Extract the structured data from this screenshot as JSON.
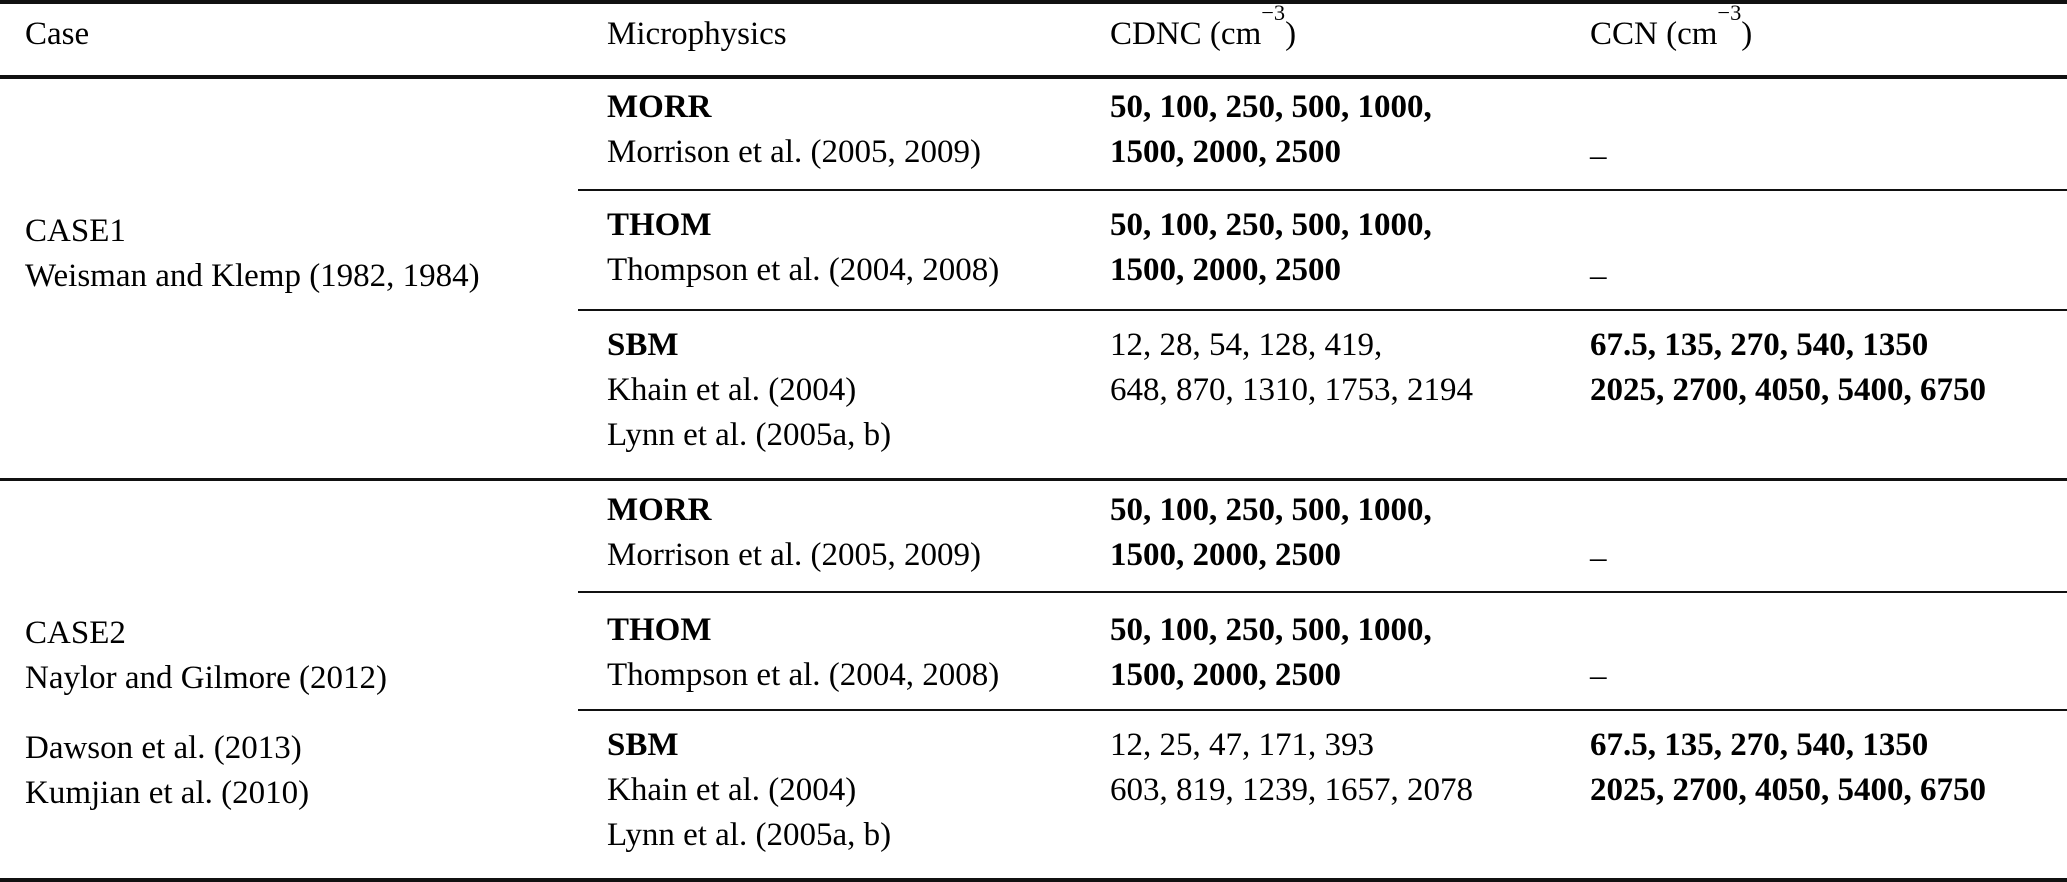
{
  "header": {
    "case": "Case",
    "microphysics": "Microphysics",
    "cdnc_prefix": "CDNC (cm",
    "cdnc_exponent": "−3",
    "cdnc_suffix": ")",
    "ccn_prefix": "CCN (cm",
    "ccn_exponent": "−3",
    "ccn_suffix": ")"
  },
  "sections": [
    {
      "case_paragraphs": [
        [
          "CASE1",
          "Weisman and Klemp (1982, 1984)"
        ]
      ],
      "rows": [
        {
          "scheme": "MORR",
          "refs": [
            "Morrison et al. (2005, 2009)"
          ],
          "cdnc_lines": [
            "50, 100, 250, 500, 1000,",
            "1500, 2000, 2500"
          ],
          "ccn_lines": [
            "–"
          ]
        },
        {
          "scheme": "THOM",
          "refs": [
            "Thompson et al. (2004, 2008)"
          ],
          "cdnc_lines": [
            "50, 100, 250, 500, 1000,",
            "1500, 2000, 2500"
          ],
          "ccn_lines": [
            "–"
          ]
        },
        {
          "scheme": "SBM",
          "refs": [
            "Khain et al. (2004)",
            "Lynn et al. (2005a, b)"
          ],
          "cdnc_lines": [
            "12, 28, 54, 128, 419,",
            "648, 870, 1310, 1753, 2194"
          ],
          "ccn_lines": [
            "67.5, 135, 270, 540, 1350",
            "2025, 2700, 4050, 5400, 6750"
          ]
        }
      ]
    },
    {
      "case_paragraphs": [
        [
          "CASE2",
          "Naylor and Gilmore (2012)"
        ],
        [
          "Dawson et al. (2013)",
          "Kumjian et al. (2010)"
        ]
      ],
      "rows": [
        {
          "scheme": "MORR",
          "refs": [
            "Morrison et al. (2005, 2009)"
          ],
          "cdnc_lines": [
            "50, 100, 250, 500, 1000,",
            "1500, 2000, 2500"
          ],
          "ccn_lines": [
            "–"
          ]
        },
        {
          "scheme": "THOM",
          "refs": [
            "Thompson et al. (2004, 2008)"
          ],
          "cdnc_lines": [
            "50, 100, 250, 500, 1000,",
            "1500, 2000, 2500"
          ],
          "ccn_lines": [
            "–"
          ]
        },
        {
          "scheme": "SBM",
          "refs": [
            "Khain et al. (2004)",
            "Lynn et al. (2005a, b)"
          ],
          "cdnc_lines": [
            "12, 25, 47, 171, 393",
            "603, 819, 1239, 1657, 2078"
          ],
          "ccn_lines": [
            "67.5, 135, 270, 540, 1350",
            "2025, 2700, 4050, 5400, 6750"
          ]
        }
      ]
    }
  ],
  "colors": {
    "background": "#ffffff",
    "text": "#000000",
    "rule": "#111111"
  }
}
